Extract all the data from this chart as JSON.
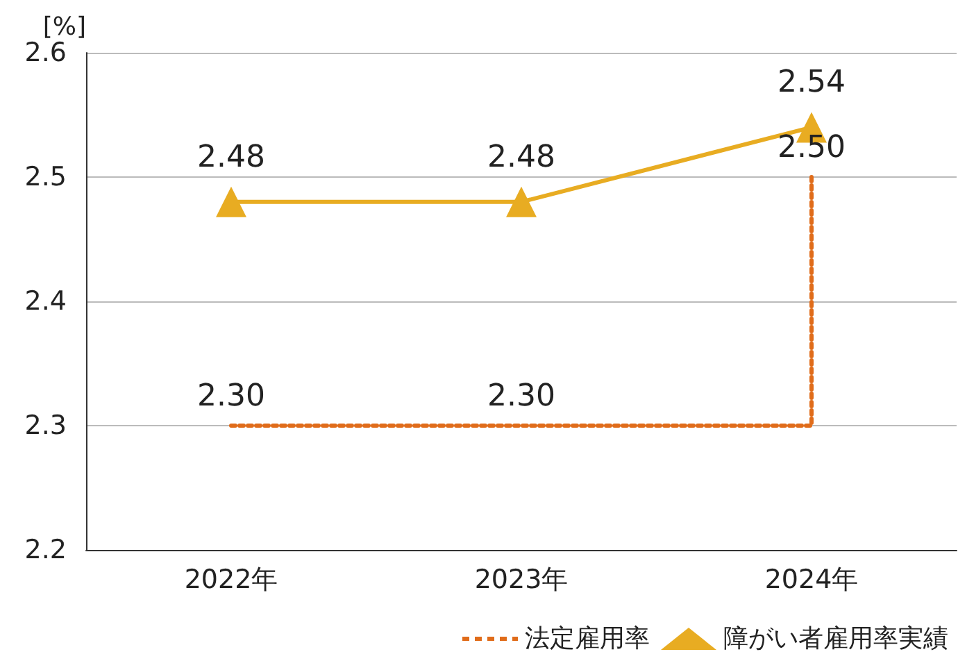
{
  "chart_data": {
    "type": "line",
    "ylabel": "[%]",
    "categories": [
      "2022年",
      "2023年",
      "2024年"
    ],
    "series": [
      {
        "name": "法定雇用率",
        "type": "step",
        "color": "#e06c1a",
        "values": [
          2.3,
          2.3,
          2.5
        ],
        "value_labels": [
          "2.30",
          "2.30",
          "2.50"
        ],
        "line_style": "dotted",
        "marker": "none"
      },
      {
        "name": "障がい者雇用率実績",
        "color": "#e8ac22",
        "values": [
          2.48,
          2.48,
          2.54
        ],
        "value_labels": [
          "2.48",
          "2.48",
          "2.54"
        ],
        "line_style": "solid",
        "marker": "triangle"
      }
    ],
    "ylim": [
      2.2,
      2.6
    ],
    "yticks": [
      2.2,
      2.3,
      2.4,
      2.5,
      2.6
    ],
    "grid": "y",
    "legend": "bottom right"
  }
}
